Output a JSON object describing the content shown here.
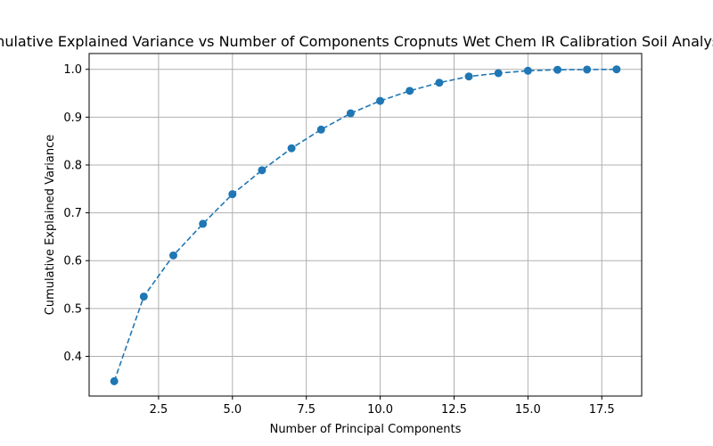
{
  "chart_data": {
    "type": "line",
    "title": "Cumulative Explained Variance vs Number of Components Cropnuts Wet Chem IR Calibration Soil Analysis.csv",
    "xlabel": "Number of Principal Components",
    "ylabel": "Cumulative Explained Variance",
    "xlim": [
      0.15,
      18.85
    ],
    "ylim": [
      0.317,
      1.033
    ],
    "x_ticks": [
      2.5,
      5.0,
      7.5,
      10.0,
      12.5,
      15.0,
      17.5
    ],
    "x_tick_labels": [
      "2.5",
      "5.0",
      "7.5",
      "10.0",
      "12.5",
      "15.0",
      "17.5"
    ],
    "y_ticks": [
      0.4,
      0.5,
      0.6,
      0.7,
      0.8,
      0.9,
      1.0
    ],
    "y_tick_labels": [
      "0.4",
      "0.5",
      "0.6",
      "0.7",
      "0.8",
      "0.9",
      "1.0"
    ],
    "grid": true,
    "line_style": "dashed",
    "marker": "circle",
    "color": "#1f77b4",
    "series": [
      {
        "x": [
          1,
          2,
          3,
          4,
          5,
          6,
          7,
          8,
          9,
          10,
          11,
          12,
          13,
          14,
          15,
          16,
          17,
          18
        ],
        "values": [
          0.348,
          0.525,
          0.611,
          0.677,
          0.739,
          0.789,
          0.835,
          0.874,
          0.908,
          0.934,
          0.955,
          0.972,
          0.985,
          0.992,
          0.997,
          0.999,
          0.9995,
          1.0
        ]
      }
    ]
  }
}
